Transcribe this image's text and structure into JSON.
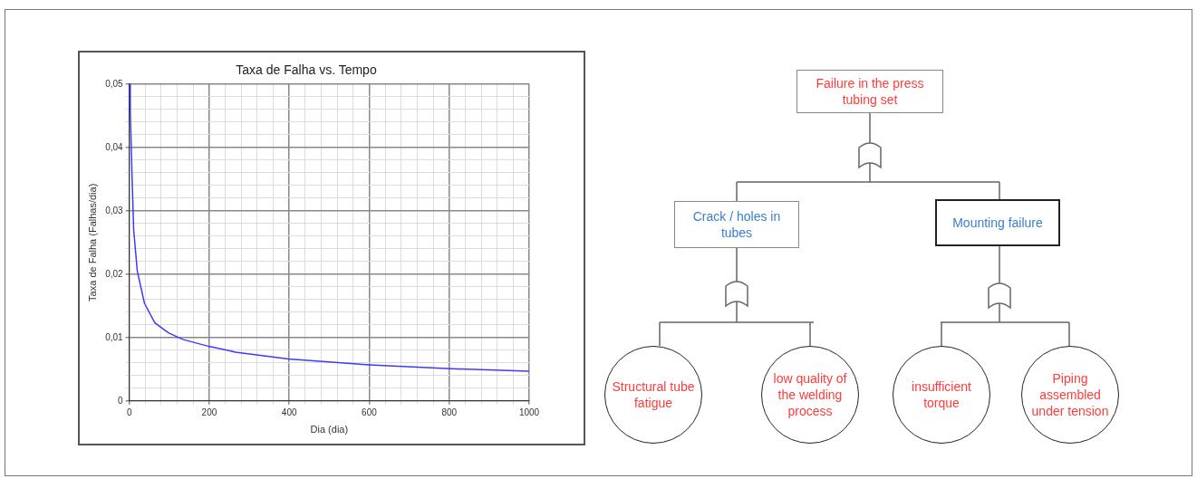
{
  "chart_data": [
    {
      "type": "line",
      "title": "Taxa de Falha vs. Tempo",
      "xlabel": "Dia (dia)",
      "ylabel": "Taxa de Falha (Falhas/dia)",
      "x": [
        1.5,
        2.6,
        7,
        11,
        20,
        38,
        64,
        99,
        134,
        199,
        266,
        398,
        600,
        793,
        1000
      ],
      "series": [
        {
          "color": "#3b3bff",
          "values": [
            0.05,
            0.0455,
            0.0353,
            0.027,
            0.0205,
            0.0154,
            0.0123,
            0.0107,
            0.0097,
            0.0086,
            0.0077,
            0.0066,
            0.0057,
            0.0051,
            0.0047
          ]
        }
      ],
      "xlim": [
        0,
        1000
      ],
      "xticks": [
        0,
        {
          "value": 40,
          "label": null
        },
        {
          "value": 80,
          "label": null
        },
        {
          "value": 120,
          "label": null
        },
        {
          "value": 160,
          "label": null
        },
        200,
        {
          "value": 240,
          "label": null
        },
        {
          "value": 280,
          "label": null
        },
        {
          "value": 320,
          "label": null
        },
        {
          "value": 360,
          "label": null
        },
        400,
        {
          "value": 440,
          "label": null
        },
        {
          "value": 480,
          "label": null
        },
        {
          "value": 520,
          "label": null
        },
        {
          "value": 560,
          "label": null
        },
        600,
        {
          "value": 640,
          "label": null
        },
        {
          "value": 680,
          "label": null
        },
        {
          "value": 720,
          "label": null
        },
        {
          "value": 760,
          "label": null
        },
        800,
        {
          "value": 840,
          "label": null
        },
        {
          "value": 880,
          "label": null
        },
        {
          "value": 920,
          "label": null
        },
        {
          "value": 960,
          "label": null
        },
        1000
      ],
      "ylim": [
        0,
        0.05
      ],
      "yticks": [
        0,
        {
          "value": 0.002,
          "label": null
        },
        {
          "value": 0.004,
          "label": null
        },
        {
          "value": 0.006,
          "label": null
        },
        {
          "value": 0.008,
          "label": null
        },
        {
          "value": 0.01,
          "label": "0,01"
        },
        {
          "value": 0.012,
          "label": null
        },
        {
          "value": 0.014,
          "label": null
        },
        {
          "value": 0.016,
          "label": null
        },
        {
          "value": 0.018,
          "label": null
        },
        {
          "value": 0.02,
          "label": "0,02"
        },
        {
          "value": 0.022,
          "label": null
        },
        {
          "value": 0.024,
          "label": null
        },
        {
          "value": 0.026,
          "label": null
        },
        {
          "value": 0.028,
          "label": null
        },
        {
          "value": 0.03,
          "label": "0,03"
        },
        {
          "value": 0.032,
          "label": null
        },
        {
          "value": 0.034,
          "label": null
        },
        {
          "value": 0.036,
          "label": null
        },
        {
          "value": 0.038,
          "label": null
        },
        {
          "value": 0.04,
          "label": "0,04"
        },
        {
          "value": 0.042,
          "label": null
        },
        {
          "value": 0.044,
          "label": null
        },
        {
          "value": 0.046,
          "label": null
        },
        {
          "value": 0.048,
          "label": null
        },
        {
          "value": 0.05,
          "label": "0,05"
        }
      ],
      "grid": true
    },
    {
      "type": "other",
      "annotations": [
        "Failure in the press tubing set",
        "Crack / holes in tubes",
        "Mounting failure",
        "Structural tube fatigue",
        "low quality of the welding process",
        "insufficient torque",
        "Piping assembled under tension"
      ]
    }
  ]
}
